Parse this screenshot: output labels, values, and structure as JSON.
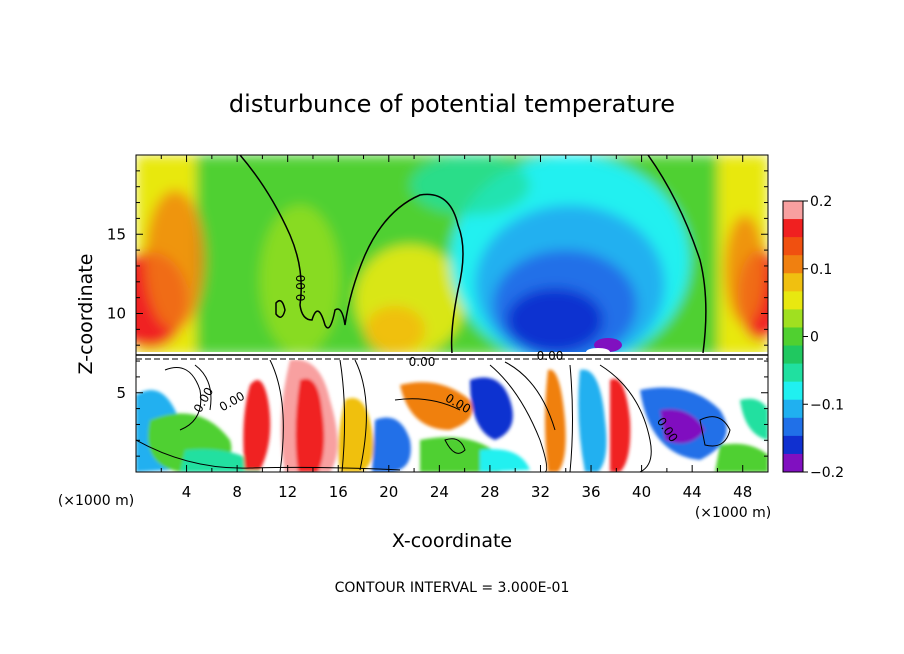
{
  "chart_data": {
    "type": "heatmap",
    "title": "disturbunce of potential temperature",
    "xlabel": "X-coordinate",
    "ylabel": "Z-coordinate",
    "x_unit": "(×1000 m)",
    "y_unit": "(×1000 m)",
    "xlim": [
      0,
      50
    ],
    "ylim": [
      0,
      20
    ],
    "x_ticks": [
      4,
      8,
      12,
      16,
      20,
      24,
      28,
      32,
      36,
      40,
      44,
      48
    ],
    "y_ticks": [
      5,
      10,
      15
    ],
    "colorbar": {
      "range": [
        -0.2,
        0.2
      ],
      "tick_values": [
        0.2,
        0.1,
        0,
        -0.1,
        -0.2
      ],
      "tick_labels": [
        "0.2",
        "0.1",
        "0",
        "−0.1",
        "−0.2"
      ],
      "colors": [
        "#f8a0a0",
        "#f02020",
        "#f05010",
        "#f08010",
        "#f0c010",
        "#e8e810",
        "#a0e020",
        "#50d030",
        "#20c860",
        "#20e0a0",
        "#20f0f0",
        "#20b0f0",
        "#2070e8",
        "#1030d0",
        "#8010c0"
      ]
    },
    "contour_label": "0.00",
    "footer": "CONTOUR INTERVAL = 3.000E-01"
  },
  "colors": {
    "background": "#ffffff",
    "axis": "#000000"
  }
}
